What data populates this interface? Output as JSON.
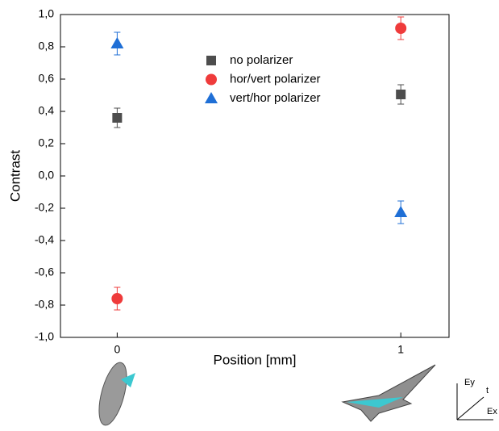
{
  "chart_data": {
    "type": "scatter",
    "x_label": "Position [mm]",
    "y_label": "Contrast",
    "x": [
      0,
      1
    ],
    "series": [
      {
        "name": "no polarizer",
        "color": "#4d4d4d",
        "marker": "square",
        "values": [
          0.36,
          0.505
        ],
        "errors": [
          0.06,
          0.06
        ]
      },
      {
        "name": "hor/vert polarizer",
        "color": "#ef3b3b",
        "marker": "circle",
        "values": [
          -0.76,
          0.915
        ],
        "errors": [
          0.07,
          0.07
        ]
      },
      {
        "name": "vert/hor polarizer",
        "color": "#1f6fd6",
        "marker": "triangle",
        "values": [
          0.82,
          -0.225
        ],
        "errors": [
          0.07,
          0.07
        ]
      }
    ],
    "xlim": [
      -0.2,
      1.17
    ],
    "xticks": [
      0,
      1
    ],
    "ylim": [
      -1,
      1
    ],
    "yticks": [
      {
        "value": -1,
        "label": "-1,0"
      },
      {
        "value": -0.8,
        "label": "-0,8"
      },
      {
        "value": -0.6,
        "label": "-0,6"
      },
      {
        "value": -0.4,
        "label": "-0,4"
      },
      {
        "value": -0.2,
        "label": "-0,2"
      },
      {
        "value": 0,
        "label": "0,0"
      },
      {
        "value": 0.2,
        "label": "0,2"
      },
      {
        "value": 0.4,
        "label": "0,4"
      },
      {
        "value": 0.6,
        "label": "0,6"
      },
      {
        "value": 0.8,
        "label": "0,8"
      },
      {
        "value": 1,
        "label": "1,0"
      }
    ],
    "grid": false,
    "legend": "top-center",
    "annotations": [
      "Ey",
      "t",
      "Ex"
    ]
  }
}
